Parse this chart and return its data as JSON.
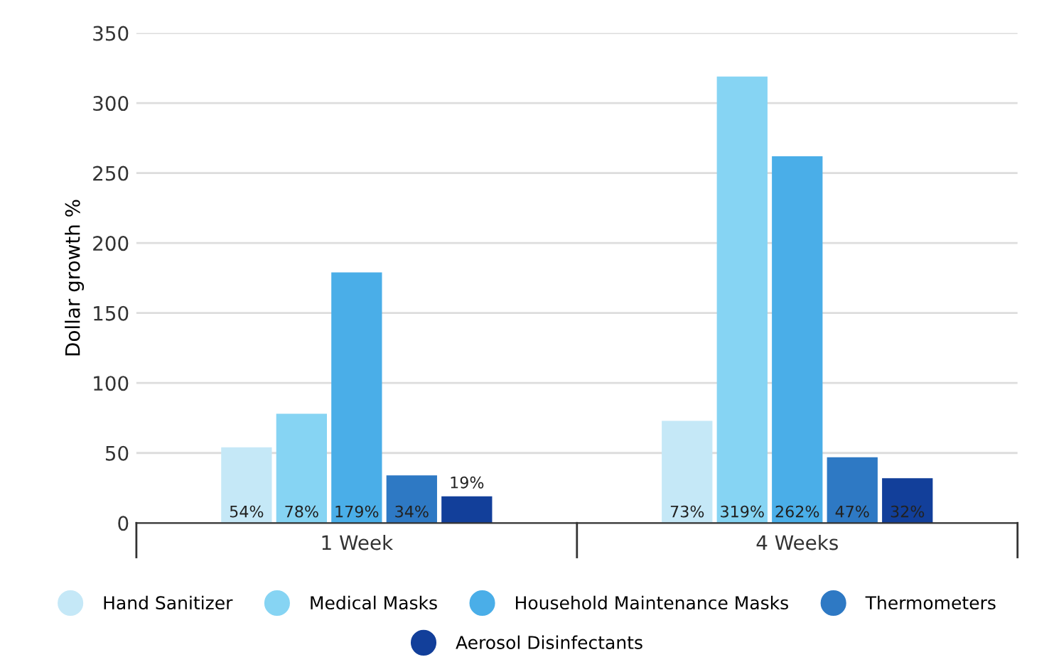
{
  "chart_data": {
    "type": "bar",
    "ylabel": "Dollar growth %",
    "categories": [
      "1 Week",
      "4 Weeks"
    ],
    "series": [
      {
        "name": "Hand Sanitizer",
        "color": "#c5e8f7",
        "values": [
          54,
          73
        ],
        "value_labels": [
          "54%",
          "73%"
        ]
      },
      {
        "name": "Medical Masks",
        "color": "#86d4f3",
        "values": [
          78,
          319
        ],
        "value_labels": [
          "78%",
          "319%"
        ]
      },
      {
        "name": "Household Maintenance Masks",
        "color": "#4aaee8",
        "values": [
          179,
          262
        ],
        "value_labels": [
          "179%",
          "262%"
        ]
      },
      {
        "name": "Thermometers",
        "color": "#2e79c4",
        "values": [
          34,
          47
        ],
        "value_labels": [
          "34%",
          "47%"
        ]
      },
      {
        "name": "Aerosol Disinfectants",
        "color": "#123f9a",
        "values": [
          19,
          32
        ],
        "value_labels": [
          "19%",
          "32%"
        ]
      }
    ],
    "ylim": [
      0,
      350
    ],
    "yticks": [
      0,
      50,
      100,
      150,
      200,
      250,
      300,
      350
    ],
    "grid": "y",
    "legend": "bottom"
  }
}
